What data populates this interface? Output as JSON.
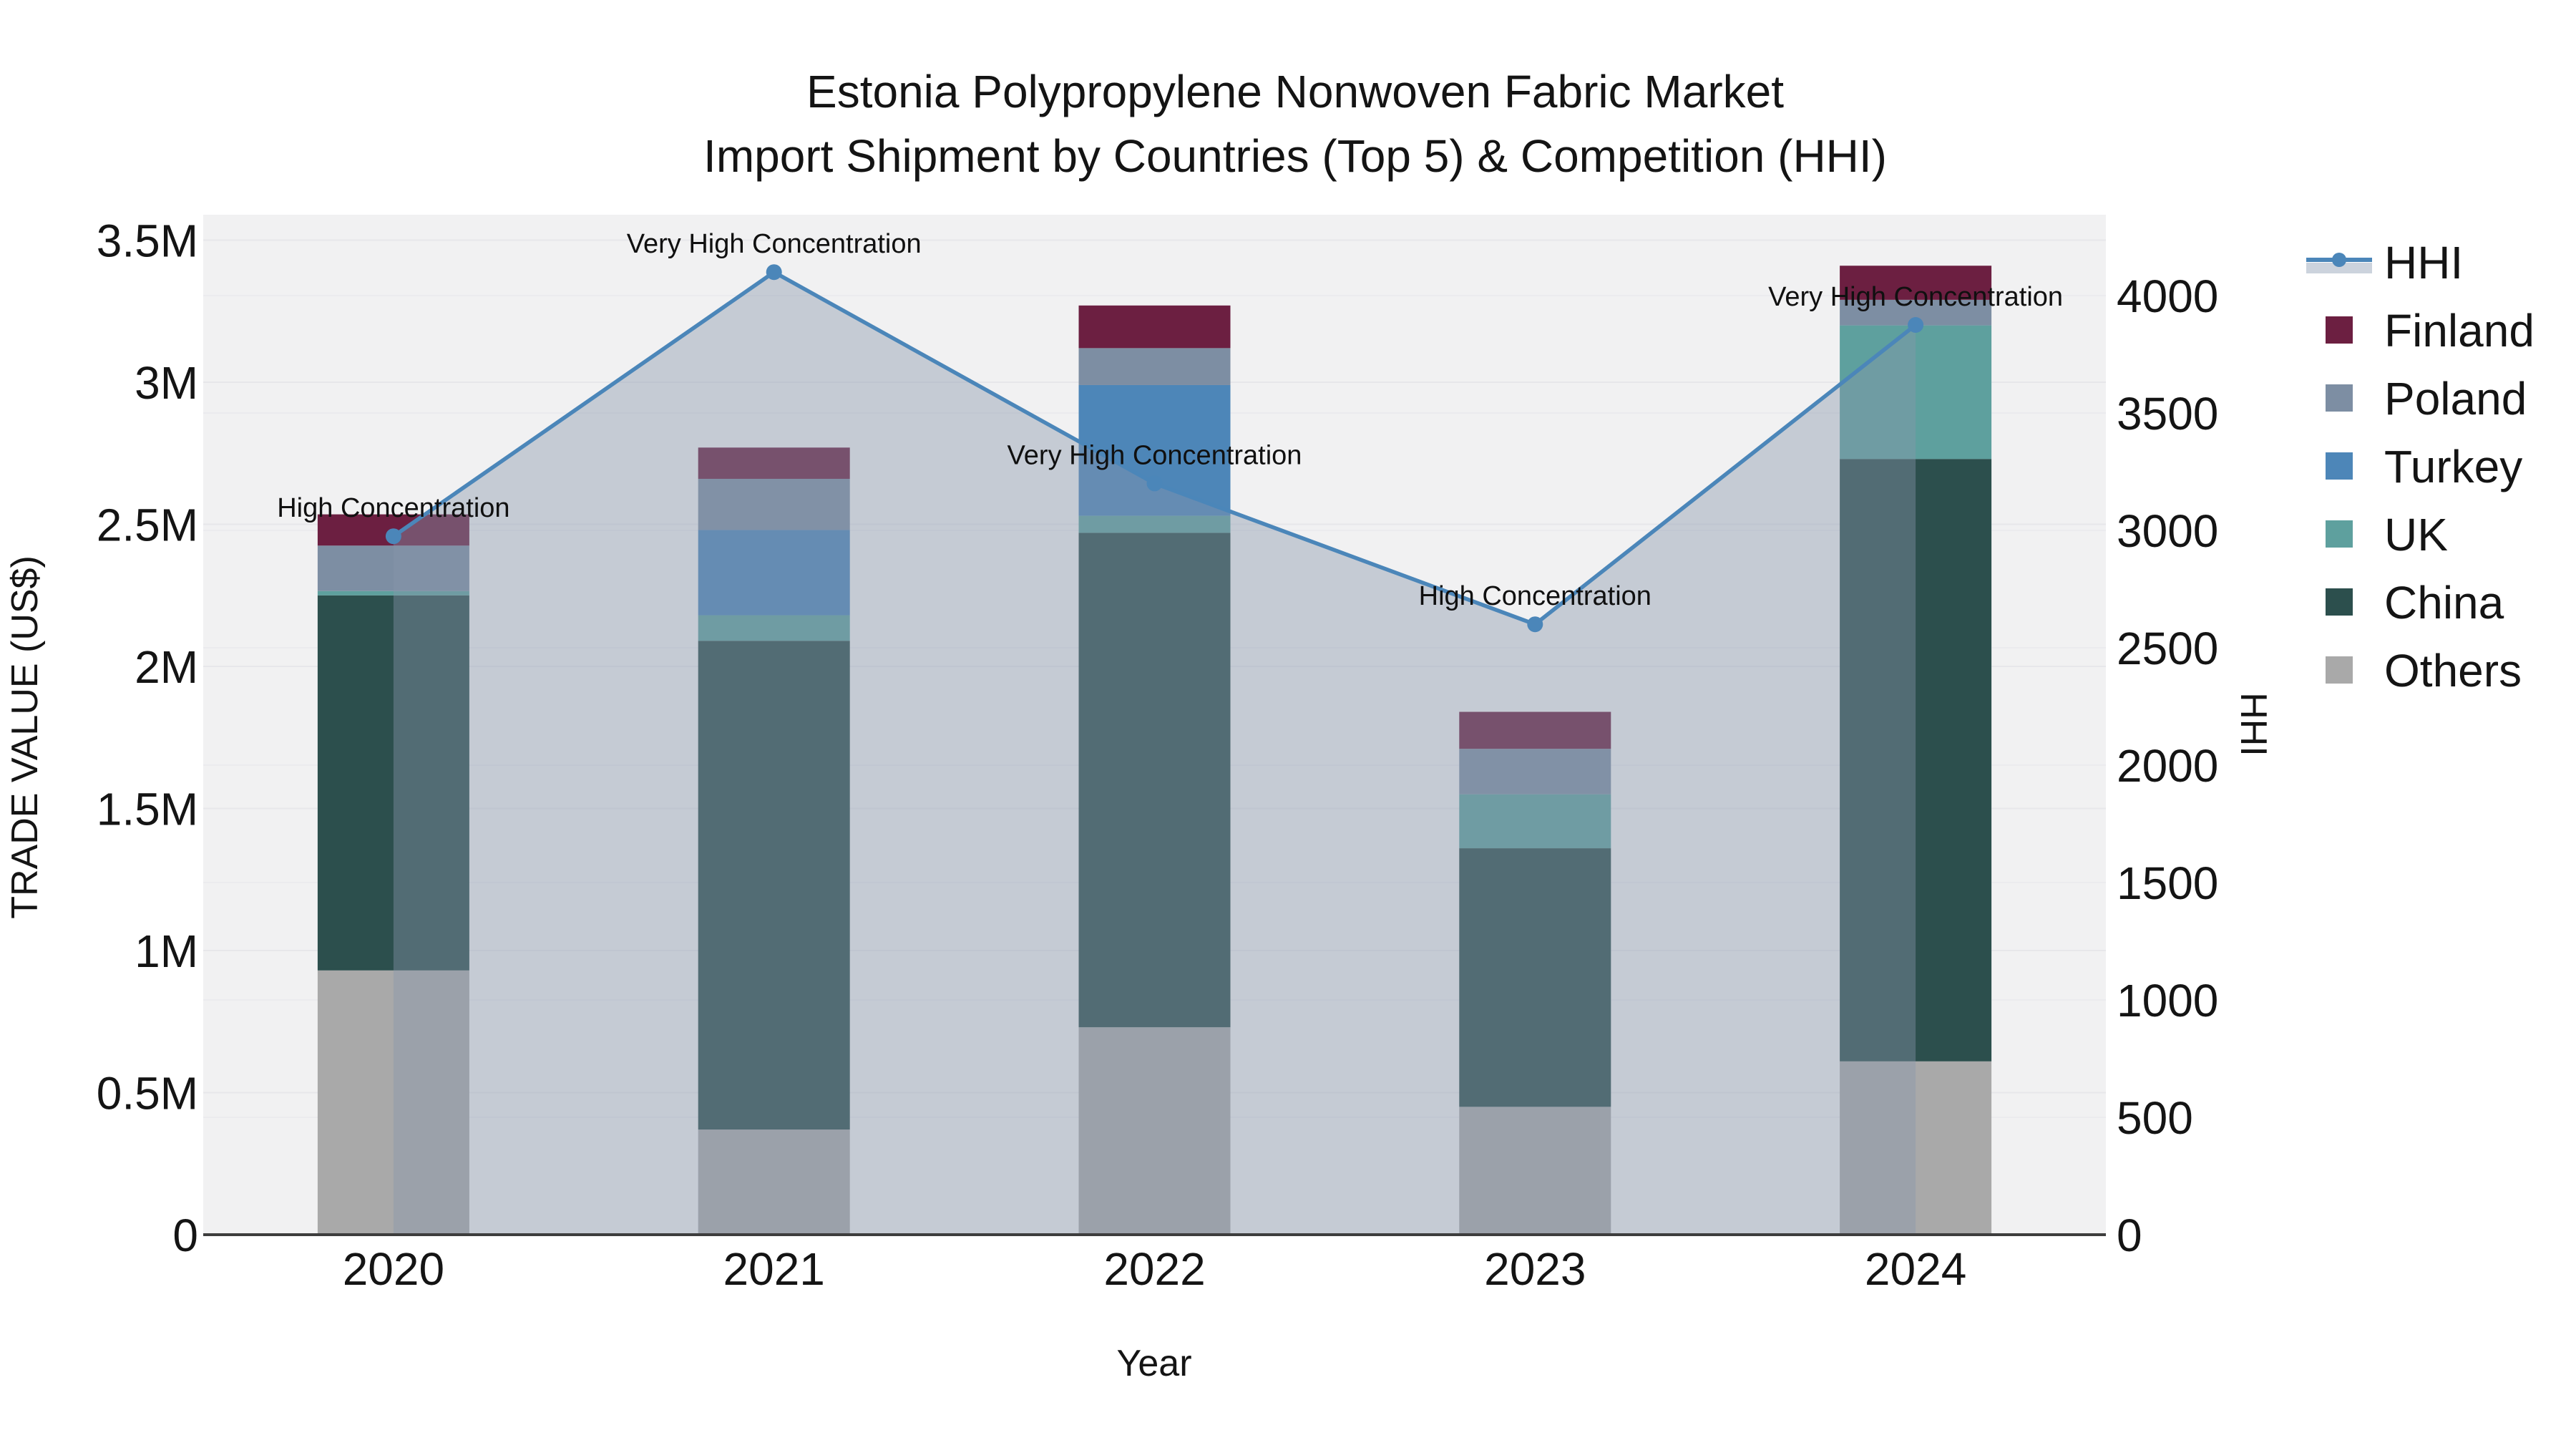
{
  "title": {
    "line1": "Estonia Polypropylene Nonwoven Fabric Market",
    "line2": "Import Shipment by Countries (Top 5) & Competition (HHI)"
  },
  "axes": {
    "left_title": "TRADE VALUE (US$)",
    "right_title": "HHI",
    "x_title": "Year",
    "left_ticks": [
      {
        "v": 0,
        "label": "0"
      },
      {
        "v": 0.5,
        "label": "0.5M"
      },
      {
        "v": 1,
        "label": "1M"
      },
      {
        "v": 1.5,
        "label": "1.5M"
      },
      {
        "v": 2,
        "label": "2M"
      },
      {
        "v": 2.5,
        "label": "2.5M"
      },
      {
        "v": 3,
        "label": "3M"
      },
      {
        "v": 3.5,
        "label": "3.5M"
      }
    ],
    "right_ticks": [
      {
        "v": 0,
        "label": "0"
      },
      {
        "v": 500,
        "label": "500"
      },
      {
        "v": 1000,
        "label": "1000"
      },
      {
        "v": 1500,
        "label": "1500"
      },
      {
        "v": 2000,
        "label": "2000"
      },
      {
        "v": 2500,
        "label": "2500"
      },
      {
        "v": 3000,
        "label": "3000"
      },
      {
        "v": 3500,
        "label": "3500"
      },
      {
        "v": 4000,
        "label": "4000"
      }
    ]
  },
  "legend": {
    "position": "right",
    "items": [
      {
        "name": "HHI",
        "type": "line",
        "color": "#4b86b9"
      },
      {
        "name": "Finland",
        "type": "swatch",
        "color": "#6c1f41"
      },
      {
        "name": "Poland",
        "type": "swatch",
        "color": "#7d8ea3"
      },
      {
        "name": "Turkey",
        "type": "swatch",
        "color": "#4d86b8"
      },
      {
        "name": "UK",
        "type": "swatch",
        "color": "#5ea09e"
      },
      {
        "name": "China",
        "type": "swatch",
        "color": "#2c4f4d"
      },
      {
        "name": "Others",
        "type": "swatch",
        "color": "#a9a9a9"
      }
    ]
  },
  "chart_data": {
    "type": "bar",
    "subtype": "stacked-bars-with-line-area-overlay",
    "title": "Estonia Polypropylene Nonwoven Fabric Market Import Shipment by Countries (Top 5) & Competition (HHI)",
    "xlabel": "Year",
    "ylabel_left": "TRADE VALUE (US$)",
    "ylabel_right": "HHI",
    "categories": [
      "2020",
      "2021",
      "2022",
      "2023",
      "2024"
    ],
    "values_unit": "million US$",
    "ylim_left_millions": [
      0,
      3.6
    ],
    "ylim_right_hhi": [
      0,
      4345
    ],
    "grid": true,
    "legend_position": "right",
    "stack_order": "bottom_to_top",
    "series": [
      {
        "name": "Others",
        "color": "#a9a9a9",
        "values": [
          0.93,
          0.37,
          0.73,
          0.45,
          0.61
        ]
      },
      {
        "name": "China",
        "color": "#2c4f4d",
        "values": [
          1.32,
          1.72,
          1.74,
          0.91,
          2.12
        ]
      },
      {
        "name": "UK",
        "color": "#5ea09e",
        "values": [
          0.015,
          0.09,
          0.06,
          0.19,
          0.47
        ]
      },
      {
        "name": "Turkey",
        "color": "#4d86b8",
        "values": [
          0,
          0.3,
          0.46,
          0,
          0
        ]
      },
      {
        "name": "Poland",
        "color": "#7d8ea3",
        "values": [
          0.16,
          0.18,
          0.13,
          0.16,
          0.09
        ]
      },
      {
        "name": "Finland",
        "color": "#6c1f41",
        "values": [
          0.11,
          0.11,
          0.15,
          0.13,
          0.12
        ]
      }
    ],
    "bar_totals_millions": [
      2.535,
      2.77,
      3.27,
      1.84,
      3.41
    ],
    "hhi": {
      "name": "HHI",
      "line_color": "#4b86b9",
      "area_fill": "rgba(136,150,172,0.42)",
      "marker": "circle",
      "values": [
        2975,
        4100,
        3200,
        2600,
        3875
      ],
      "annotations": [
        "High Concentration",
        "Very High Concentration",
        "Very High Concentration",
        "High Concentration",
        "Very High Concentration"
      ]
    }
  }
}
